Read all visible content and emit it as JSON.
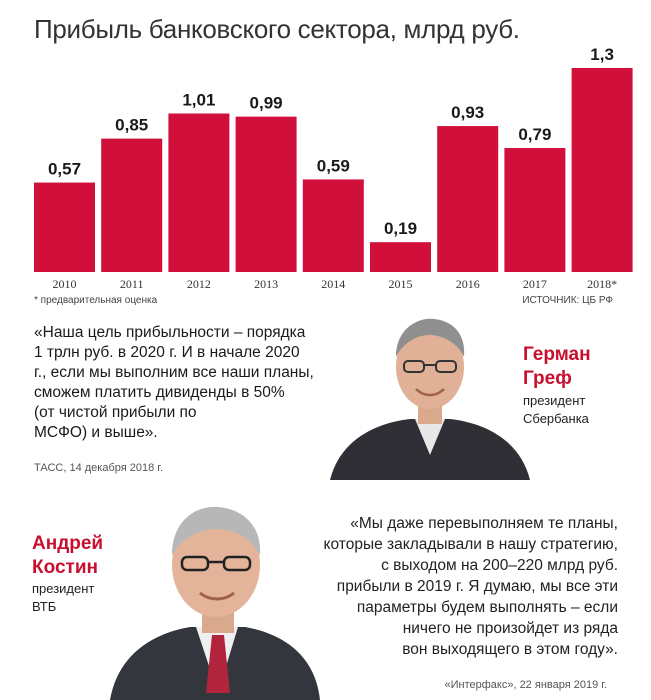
{
  "title": "Прибыль банковского сектора, млрд руб.",
  "chart_data": {
    "type": "bar",
    "title": "Прибыль банковского сектора, млрд руб.",
    "categories": [
      "2010",
      "2011",
      "2012",
      "2013",
      "2014",
      "2015",
      "2016",
      "2017",
      "2018*"
    ],
    "values": [
      0.57,
      0.85,
      1.01,
      0.99,
      0.59,
      0.19,
      0.93,
      0.79,
      1.3
    ],
    "value_labels": [
      "0,57",
      "0,85",
      "1,01",
      "0,99",
      "0,59",
      "0,19",
      "0,93",
      "0,79",
      "1,3"
    ],
    "ylim": [
      0,
      1.3
    ],
    "grid": false,
    "legend": "none",
    "bar_color": "#d0103a"
  },
  "footnote": "* предварительная оценка",
  "source": "ИСТОЧНИК: ЦБ РФ",
  "quote1": {
    "lines": [
      "«Наша цель прибыльности – порядка",
      "1 трлн руб. в 2020 г. И в начале 2020",
      "г., если мы выполним все наши планы,",
      "сможем платить дивиденды в 50%",
      "(от чистой прибыли по",
      "МСФО) и выше».",
      ""
    ],
    "cite": "ТАСС, 14 декабря 2018 г.",
    "name_line1": "Герман",
    "name_line2": "Греф",
    "role_line1": "президент",
    "role_line2": "Сбербанка"
  },
  "quote2": {
    "lines": [
      "«Мы даже перевыполняем те планы,",
      "которые закладывали в нашу стратегию,",
      "с выходом на 200–220 млрд руб.",
      "прибыли в 2019 г. Я думаю, мы все эти",
      "параметры будем выполнять – если",
      "ничего не произойдет из ряда",
      "вон выходящего в этом году»."
    ],
    "cite": "«Интерфакс», 22 января 2019 г.",
    "name_line1": "Андрей",
    "name_line2": "Костин",
    "role_line1": "президент",
    "role_line2": "ВТБ"
  },
  "colors": {
    "accent": "#c8102e",
    "bar": "#d0103a"
  }
}
